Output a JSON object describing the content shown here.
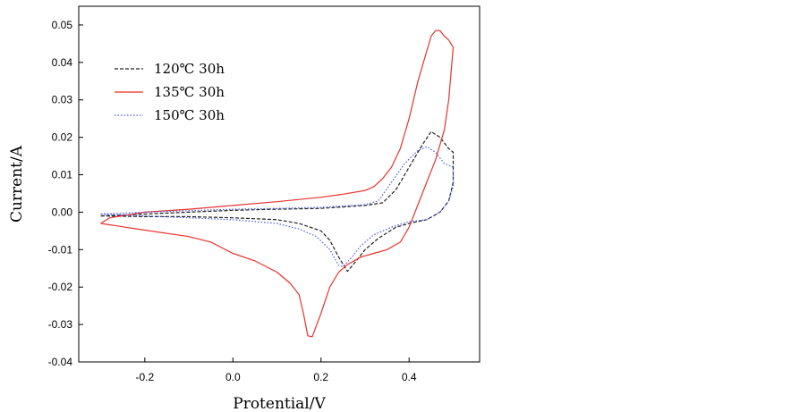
{
  "chart_data": {
    "type": "line",
    "xlabel": "Protential/V",
    "ylabel": "Current/A",
    "xlim": [
      -0.35,
      0.56
    ],
    "ylim": [
      -0.04,
      0.055
    ],
    "x_ticks": [
      -0.2,
      0.0,
      0.2,
      0.4
    ],
    "x_tick_labels": [
      "-0.2",
      "0.0",
      "0.2",
      "0.4"
    ],
    "y_ticks": [
      -0.04,
      -0.03,
      -0.02,
      -0.01,
      0.0,
      0.01,
      0.02,
      0.03,
      0.04,
      0.05
    ],
    "y_tick_labels": [
      "-0.04",
      "-0.03",
      "-0.02",
      "-0.01",
      "0.00",
      "0.01",
      "0.02",
      "0.03",
      "0.04",
      "0.05"
    ],
    "grid": false,
    "legend_position": "top-left",
    "series": [
      {
        "name": "120℃ 30h",
        "color": "#222222",
        "dash": "dashed",
        "points": [
          [
            -0.3,
            -0.001
          ],
          [
            -0.2,
            -0.0005
          ],
          [
            -0.1,
            0.0
          ],
          [
            0.0,
            0.0005
          ],
          [
            0.1,
            0.0008
          ],
          [
            0.2,
            0.001
          ],
          [
            0.3,
            0.0018
          ],
          [
            0.34,
            0.0025
          ],
          [
            0.37,
            0.006
          ],
          [
            0.4,
            0.012
          ],
          [
            0.43,
            0.018
          ],
          [
            0.45,
            0.0215
          ],
          [
            0.47,
            0.02
          ],
          [
            0.49,
            0.017
          ],
          [
            0.5,
            0.016
          ],
          [
            0.5,
            0.008
          ],
          [
            0.49,
            0.003
          ],
          [
            0.47,
            0.0
          ],
          [
            0.44,
            -0.002
          ],
          [
            0.4,
            -0.003
          ],
          [
            0.37,
            -0.004
          ],
          [
            0.33,
            -0.007
          ],
          [
            0.3,
            -0.01
          ],
          [
            0.28,
            -0.013
          ],
          [
            0.26,
            -0.0158
          ],
          [
            0.24,
            -0.012
          ],
          [
            0.22,
            -0.0075
          ],
          [
            0.2,
            -0.005
          ],
          [
            0.15,
            -0.003
          ],
          [
            0.1,
            -0.002
          ],
          [
            0.0,
            -0.0015
          ],
          [
            -0.1,
            -0.0012
          ],
          [
            -0.2,
            -0.0012
          ],
          [
            -0.3,
            -0.001
          ]
        ]
      },
      {
        "name": "135℃ 30h",
        "color": "#e8332f",
        "dash": "solid",
        "points": [
          [
            -0.3,
            -0.003
          ],
          [
            -0.28,
            -0.0015
          ],
          [
            -0.2,
            0.0
          ],
          [
            -0.1,
            0.0008
          ],
          [
            0.0,
            0.0018
          ],
          [
            0.1,
            0.0028
          ],
          [
            0.2,
            0.004
          ],
          [
            0.25,
            0.0048
          ],
          [
            0.3,
            0.0058
          ],
          [
            0.32,
            0.0068
          ],
          [
            0.34,
            0.009
          ],
          [
            0.36,
            0.012
          ],
          [
            0.38,
            0.017
          ],
          [
            0.4,
            0.025
          ],
          [
            0.42,
            0.035
          ],
          [
            0.44,
            0.043
          ],
          [
            0.45,
            0.047
          ],
          [
            0.46,
            0.0485
          ],
          [
            0.47,
            0.0485
          ],
          [
            0.48,
            0.047
          ],
          [
            0.49,
            0.046
          ],
          [
            0.5,
            0.044
          ],
          [
            0.49,
            0.03
          ],
          [
            0.48,
            0.022
          ],
          [
            0.46,
            0.014
          ],
          [
            0.44,
            0.008
          ],
          [
            0.42,
            0.002
          ],
          [
            0.4,
            -0.004
          ],
          [
            0.38,
            -0.008
          ],
          [
            0.35,
            -0.01
          ],
          [
            0.32,
            -0.011
          ],
          [
            0.29,
            -0.012
          ],
          [
            0.26,
            -0.014
          ],
          [
            0.24,
            -0.016
          ],
          [
            0.22,
            -0.02
          ],
          [
            0.2,
            -0.027
          ],
          [
            0.18,
            -0.0333
          ],
          [
            0.17,
            -0.033
          ],
          [
            0.16,
            -0.027
          ],
          [
            0.15,
            -0.022
          ],
          [
            0.13,
            -0.019
          ],
          [
            0.1,
            -0.016
          ],
          [
            0.05,
            -0.013
          ],
          [
            0.0,
            -0.011
          ],
          [
            -0.05,
            -0.008
          ],
          [
            -0.1,
            -0.0065
          ],
          [
            -0.2,
            -0.0048
          ],
          [
            -0.3,
            -0.003
          ]
        ]
      },
      {
        "name": "150℃ 30h",
        "color": "#4a5ae0",
        "dash": "dotted",
        "points": [
          [
            -0.3,
            -0.0005
          ],
          [
            -0.2,
            0.0
          ],
          [
            -0.1,
            0.0004
          ],
          [
            0.0,
            0.0008
          ],
          [
            0.1,
            0.001
          ],
          [
            0.2,
            0.0013
          ],
          [
            0.3,
            0.002
          ],
          [
            0.33,
            0.003
          ],
          [
            0.36,
            0.008
          ],
          [
            0.39,
            0.013
          ],
          [
            0.42,
            0.0165
          ],
          [
            0.44,
            0.0175
          ],
          [
            0.46,
            0.016
          ],
          [
            0.48,
            0.013
          ],
          [
            0.5,
            0.012
          ],
          [
            0.5,
            0.007
          ],
          [
            0.49,
            0.003
          ],
          [
            0.47,
            0.0
          ],
          [
            0.44,
            -0.002
          ],
          [
            0.4,
            -0.0025
          ],
          [
            0.36,
            -0.004
          ],
          [
            0.32,
            -0.006
          ],
          [
            0.29,
            -0.009
          ],
          [
            0.27,
            -0.012
          ],
          [
            0.25,
            -0.0145
          ],
          [
            0.24,
            -0.0142
          ],
          [
            0.22,
            -0.01
          ],
          [
            0.19,
            -0.0065
          ],
          [
            0.15,
            -0.0045
          ],
          [
            0.1,
            -0.003
          ],
          [
            0.0,
            -0.002
          ],
          [
            -0.1,
            -0.0015
          ],
          [
            -0.2,
            -0.001
          ],
          [
            -0.3,
            -0.0005
          ]
        ]
      }
    ]
  }
}
